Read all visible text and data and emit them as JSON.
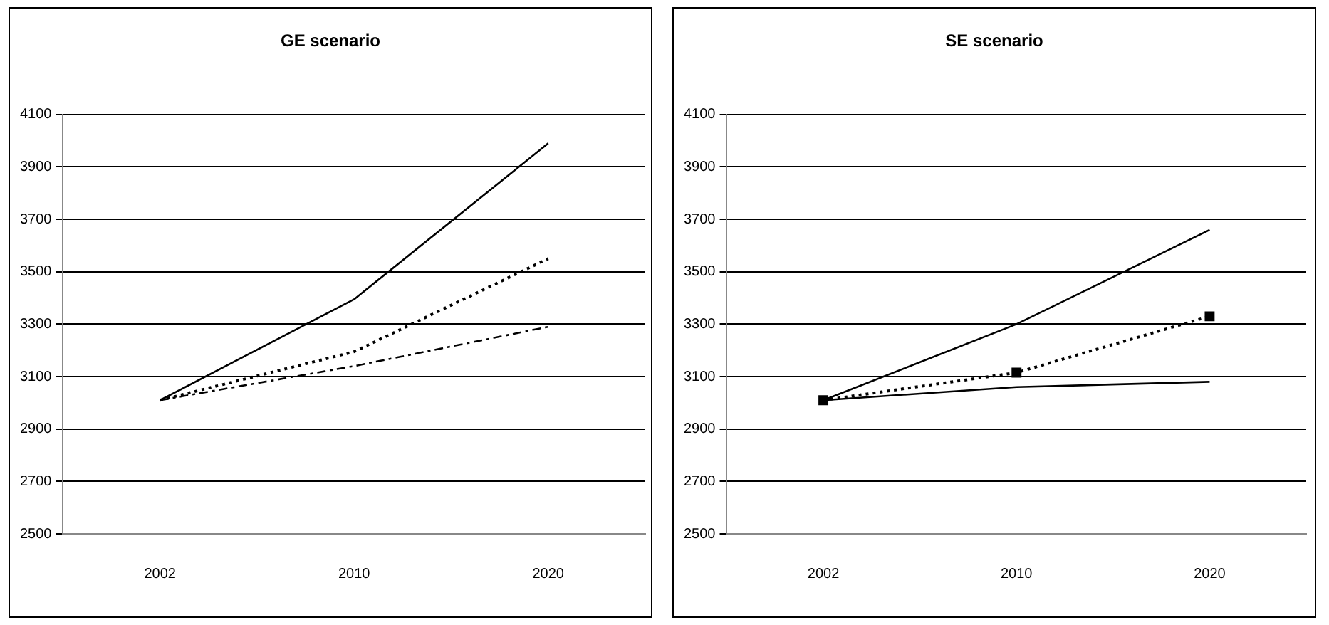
{
  "chart_data": [
    {
      "type": "line",
      "title": "GE scenario",
      "categories": [
        "2002",
        "2010",
        "2020"
      ],
      "ylim": [
        2500,
        4100
      ],
      "yticks": [
        2500,
        2700,
        2900,
        3100,
        3300,
        3500,
        3700,
        3900,
        4100
      ],
      "grid": "y",
      "legend": false,
      "series": [
        {
          "color": "#000000",
          "values": [
            3010,
            3395,
            3990
          ],
          "line_style": "solid",
          "marker": "none"
        },
        {
          "color": "#000000",
          "values": [
            3010,
            3195,
            3550
          ],
          "line_style": "dotted",
          "marker": "none"
        },
        {
          "color": "#000000",
          "values": [
            3010,
            3140,
            3290
          ],
          "line_style": "dashed",
          "marker": "none"
        }
      ]
    },
    {
      "type": "line",
      "title": "SE scenario",
      "categories": [
        "2002",
        "2010",
        "2020"
      ],
      "ylim": [
        2500,
        4100
      ],
      "yticks": [
        2500,
        2700,
        2900,
        3100,
        3300,
        3500,
        3700,
        3900,
        4100
      ],
      "grid": "y",
      "legend": false,
      "series": [
        {
          "color": "#000000",
          "values": [
            3010,
            3300,
            3660
          ],
          "line_style": "solid",
          "marker": "none"
        },
        {
          "color": "#000000",
          "values": [
            3010,
            3115,
            3330
          ],
          "line_style": "dotted",
          "marker": "square"
        },
        {
          "color": "#000000",
          "values": [
            3010,
            3060,
            3080
          ],
          "line_style": "solid",
          "marker": "none"
        }
      ]
    }
  ]
}
